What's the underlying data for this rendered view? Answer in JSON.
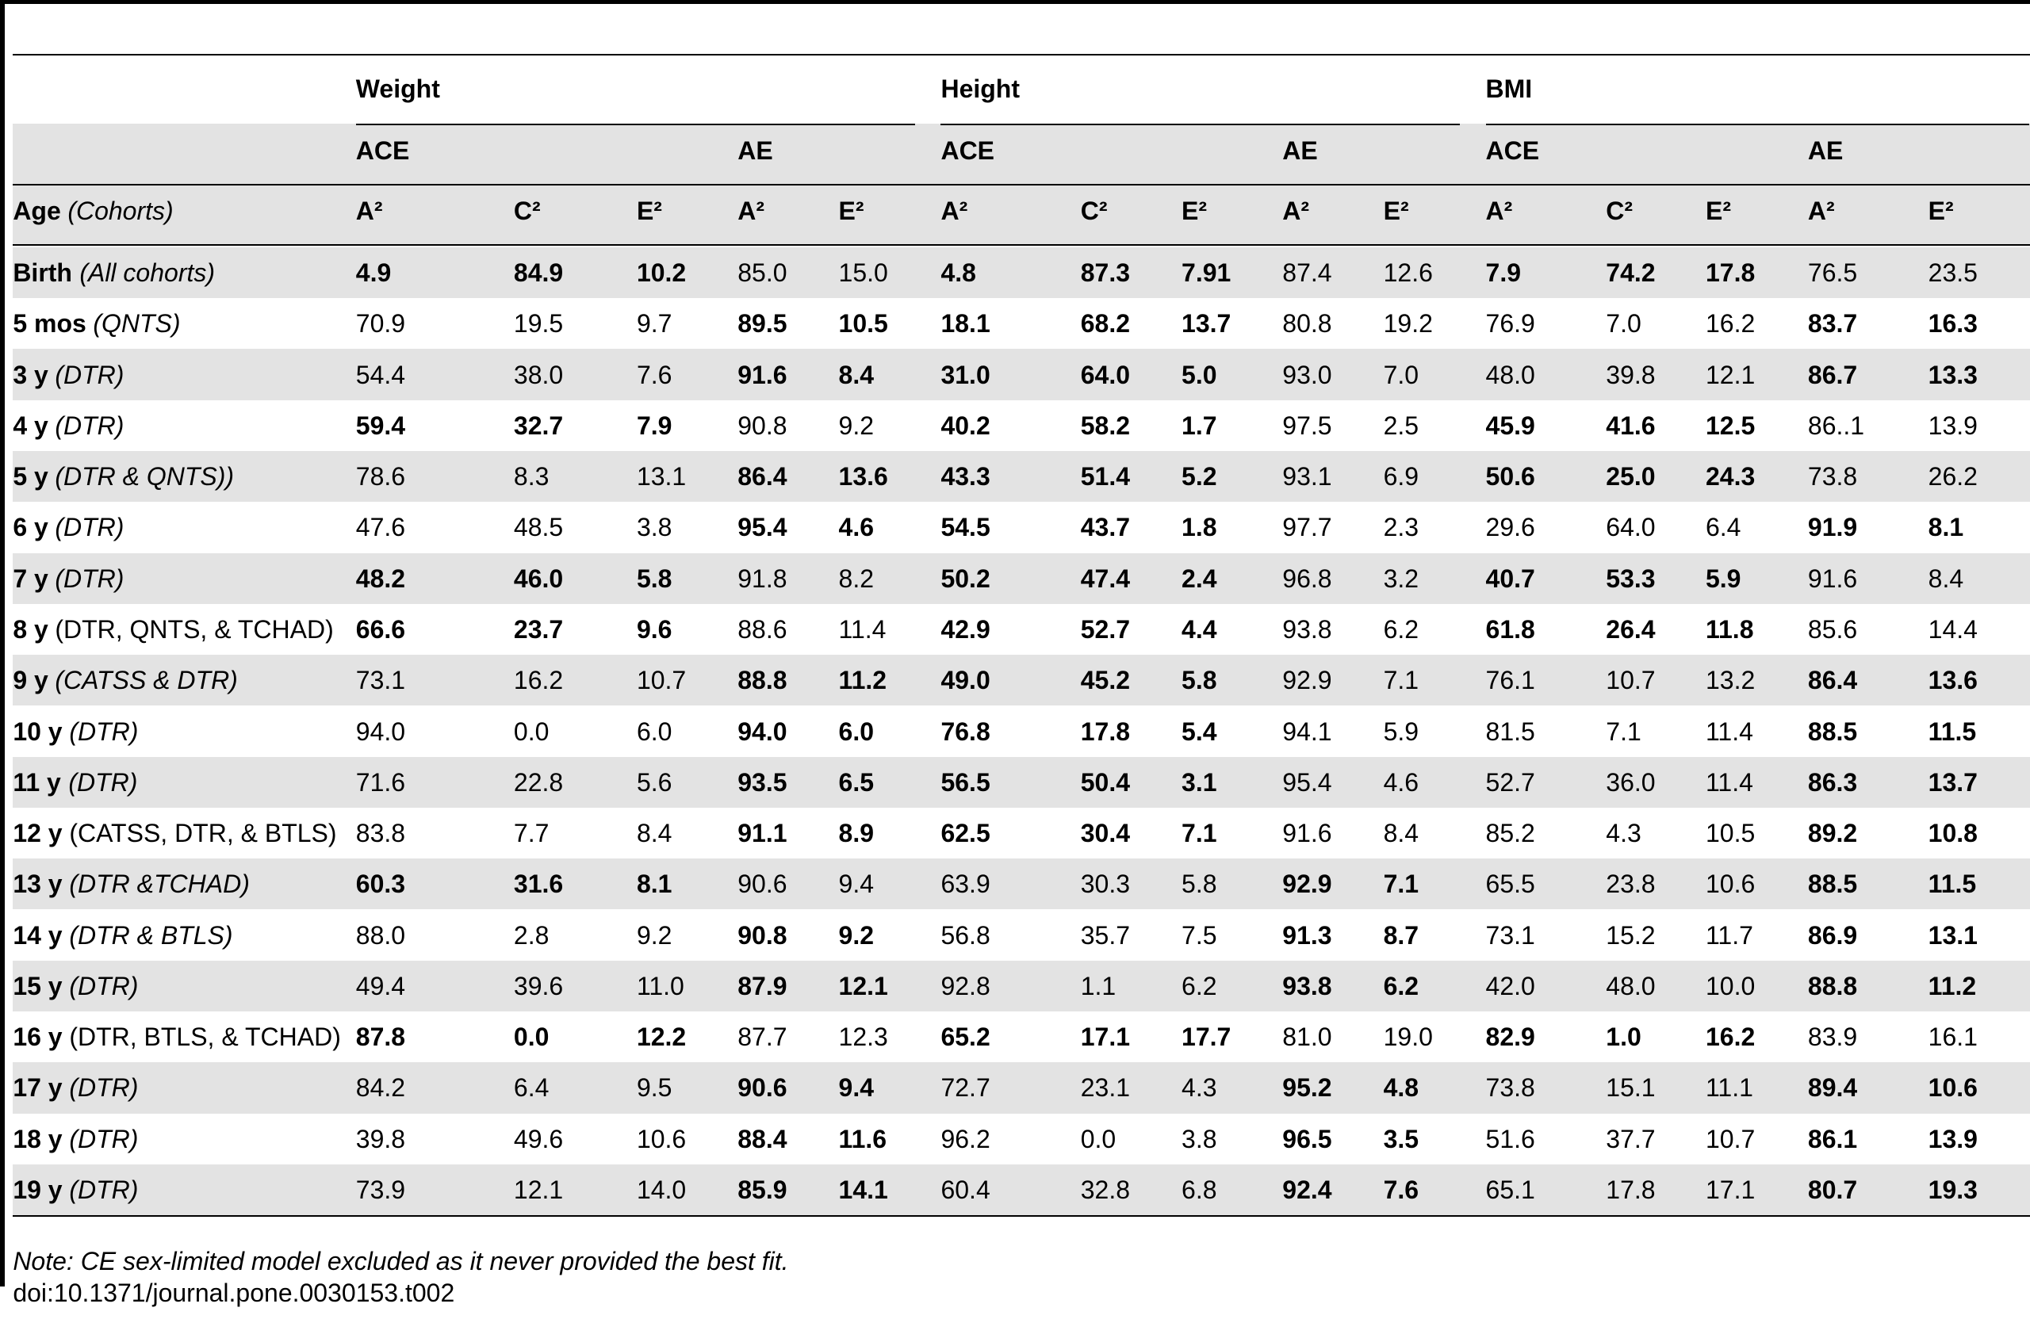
{
  "table": {
    "groups": [
      {
        "name": "Weight",
        "models": [
          "ACE",
          "AE"
        ]
      },
      {
        "name": "Height",
        "models": [
          "ACE",
          "AE"
        ]
      },
      {
        "name": "BMI",
        "models": [
          "ACE",
          "AE"
        ]
      }
    ],
    "age_header": {
      "label": "Age",
      "cohorts": "(Cohorts)"
    },
    "columns": [
      "A²",
      "C²",
      "E²",
      "A²",
      "E²",
      "A²",
      "C²",
      "E²",
      "A²",
      "E²",
      "A²",
      "C²",
      "E²",
      "A²",
      "E²"
    ],
    "rows": [
      {
        "age": "Birth",
        "cohorts": "(All cohorts)",
        "cohorts_italic": true,
        "bold_groups": [
          0,
          2,
          4
        ],
        "values": [
          "4.9",
          "84.9",
          "10.2",
          "85.0",
          "15.0",
          "4.8",
          "87.3",
          "7.91",
          "87.4",
          "12.6",
          "7.9",
          "74.2",
          "17.8",
          "76.5",
          "23.5"
        ]
      },
      {
        "age": "5 mos",
        "cohorts": "(QNTS)",
        "cohorts_italic": true,
        "bold_groups": [
          1,
          2,
          5
        ],
        "values": [
          "70.9",
          "19.5",
          "9.7",
          "89.5",
          "10.5",
          "18.1",
          "68.2",
          "13.7",
          "80.8",
          "19.2",
          "76.9",
          "7.0",
          "16.2",
          "83.7",
          "16.3"
        ]
      },
      {
        "age": "3 y",
        "cohorts": "(DTR)",
        "cohorts_italic": true,
        "bold_groups": [
          1,
          2,
          5
        ],
        "values": [
          "54.4",
          "38.0",
          "7.6",
          "91.6",
          "8.4",
          "31.0",
          "64.0",
          "5.0",
          "93.0",
          "7.0",
          "48.0",
          "39.8",
          "12.1",
          "86.7",
          "13.3"
        ]
      },
      {
        "age": "4 y",
        "cohorts": "(DTR)",
        "cohorts_italic": true,
        "bold_groups": [
          0,
          2,
          4
        ],
        "values": [
          "59.4",
          "32.7",
          "7.9",
          "90.8",
          "9.2",
          "40.2",
          "58.2",
          "1.7",
          "97.5",
          "2.5",
          "45.9",
          "41.6",
          "12.5",
          "86..1",
          "13.9"
        ]
      },
      {
        "age": "5 y",
        "cohorts": "(DTR & QNTS))",
        "cohorts_italic": true,
        "bold_groups": [
          1,
          2,
          4
        ],
        "values": [
          "78.6",
          "8.3",
          "13.1",
          "86.4",
          "13.6",
          "43.3",
          "51.4",
          "5.2",
          "93.1",
          "6.9",
          "50.6",
          "25.0",
          "24.3",
          "73.8",
          "26.2"
        ]
      },
      {
        "age": "6 y",
        "cohorts": "(DTR)",
        "cohorts_italic": true,
        "bold_groups": [
          1,
          2,
          5
        ],
        "values": [
          "47.6",
          "48.5",
          "3.8",
          "95.4",
          "4.6",
          "54.5",
          "43.7",
          "1.8",
          "97.7",
          "2.3",
          "29.6",
          "64.0",
          "6.4",
          "91.9",
          "8.1"
        ]
      },
      {
        "age": "7 y",
        "cohorts": "(DTR)",
        "cohorts_italic": true,
        "bold_groups": [
          0,
          2,
          4
        ],
        "values": [
          "48.2",
          "46.0",
          "5.8",
          "91.8",
          "8.2",
          "50.2",
          "47.4",
          "2.4",
          "96.8",
          "3.2",
          "40.7",
          "53.3",
          "5.9",
          "91.6",
          "8.4"
        ]
      },
      {
        "age": "8 y",
        "cohorts": "(DTR, QNTS, & TCHAD)",
        "cohorts_italic": false,
        "bold_groups": [
          0,
          2,
          4
        ],
        "values": [
          "66.6",
          "23.7",
          "9.6",
          "88.6",
          "11.4",
          "42.9",
          "52.7",
          "4.4",
          "93.8",
          "6.2",
          "61.8",
          "26.4",
          "11.8",
          "85.6",
          "14.4"
        ]
      },
      {
        "age": "9 y",
        "cohorts": "(CATSS & DTR)",
        "cohorts_italic": true,
        "bold_groups": [
          1,
          2,
          5
        ],
        "values": [
          "73.1",
          "16.2",
          "10.7",
          "88.8",
          "11.2",
          "49.0",
          "45.2",
          "5.8",
          "92.9",
          "7.1",
          "76.1",
          "10.7",
          "13.2",
          "86.4",
          "13.6"
        ]
      },
      {
        "age": "10 y",
        "cohorts": "(DTR)",
        "cohorts_italic": true,
        "bold_groups": [
          1,
          2,
          5
        ],
        "values": [
          "94.0",
          "0.0",
          "6.0",
          "94.0",
          "6.0",
          "76.8",
          "17.8",
          "5.4",
          "94.1",
          "5.9",
          "81.5",
          "7.1",
          "11.4",
          "88.5",
          "11.5"
        ]
      },
      {
        "age": "11 y",
        "cohorts": "(DTR)",
        "cohorts_italic": true,
        "bold_groups": [
          1,
          2,
          5
        ],
        "values": [
          "71.6",
          "22.8",
          "5.6",
          "93.5",
          "6.5",
          "56.5",
          "50.4",
          "3.1",
          "95.4",
          "4.6",
          "52.7",
          "36.0",
          "11.4",
          "86.3",
          "13.7"
        ]
      },
      {
        "age": "12 y",
        "cohorts": "(CATSS, DTR, & BTLS)",
        "cohorts_italic": false,
        "bold_groups": [
          1,
          2,
          5
        ],
        "values": [
          "83.8",
          "7.7",
          "8.4",
          "91.1",
          "8.9",
          "62.5",
          "30.4",
          "7.1",
          "91.6",
          "8.4",
          "85.2",
          "4.3",
          "10.5",
          "89.2",
          "10.8"
        ]
      },
      {
        "age": "13 y",
        "cohorts": "(DTR &TCHAD)",
        "cohorts_italic": true,
        "bold_groups": [
          0,
          3,
          5
        ],
        "values": [
          "60.3",
          "31.6",
          "8.1",
          "90.6",
          "9.4",
          "63.9",
          "30.3",
          "5.8",
          "92.9",
          "7.1",
          "65.5",
          "23.8",
          "10.6",
          "88.5",
          "11.5"
        ]
      },
      {
        "age": "14 y",
        "cohorts": "(DTR & BTLS)",
        "cohorts_italic": true,
        "bold_groups": [
          1,
          3,
          5
        ],
        "values": [
          "88.0",
          "2.8",
          "9.2",
          "90.8",
          "9.2",
          "56.8",
          "35.7",
          "7.5",
          "91.3",
          "8.7",
          "73.1",
          "15.2",
          "11.7",
          "86.9",
          "13.1"
        ]
      },
      {
        "age": "15 y",
        "cohorts": "(DTR)",
        "cohorts_italic": true,
        "bold_groups": [
          1,
          3,
          5
        ],
        "values": [
          "49.4",
          "39.6",
          "11.0",
          "87.9",
          "12.1",
          "92.8",
          "1.1",
          "6.2",
          "93.8",
          "6.2",
          "42.0",
          "48.0",
          "10.0",
          "88.8",
          "11.2"
        ]
      },
      {
        "age": "16 y",
        "cohorts": "(DTR, BTLS, & TCHAD)",
        "cohorts_italic": false,
        "bold_groups": [
          0,
          2,
          4
        ],
        "values": [
          "87.8",
          "0.0",
          "12.2",
          "87.7",
          "12.3",
          "65.2",
          "17.1",
          "17.7",
          "81.0",
          "19.0",
          "82.9",
          "1.0",
          "16.2",
          "83.9",
          "16.1"
        ]
      },
      {
        "age": "17 y",
        "cohorts": "(DTR)",
        "cohorts_italic": true,
        "bold_groups": [
          1,
          3,
          5
        ],
        "values": [
          "84.2",
          "6.4",
          "9.5",
          "90.6",
          "9.4",
          "72.7",
          "23.1",
          "4.3",
          "95.2",
          "4.8",
          "73.8",
          "15.1",
          "11.1",
          "89.4",
          "10.6"
        ]
      },
      {
        "age": "18 y",
        "cohorts": "(DTR)",
        "cohorts_italic": true,
        "bold_groups": [
          1,
          3,
          5
        ],
        "values": [
          "39.8",
          "49.6",
          "10.6",
          "88.4",
          "11.6",
          "96.2",
          "0.0",
          "3.8",
          "96.5",
          "3.5",
          "51.6",
          "37.7",
          "10.7",
          "86.1",
          "13.9"
        ]
      },
      {
        "age": "19 y",
        "cohorts": "(DTR)",
        "cohorts_italic": true,
        "bold_groups": [
          1,
          3,
          5
        ],
        "values": [
          "73.9",
          "12.1",
          "14.0",
          "85.9",
          "14.1",
          "60.4",
          "32.8",
          "6.8",
          "92.4",
          "7.6",
          "65.1",
          "17.8",
          "17.1",
          "80.7",
          "19.3"
        ]
      }
    ]
  },
  "note": "Note: CE sex-limited model excluded as it never provided the best fit.",
  "doi": "doi:10.1371/journal.pone.0030153.t002"
}
